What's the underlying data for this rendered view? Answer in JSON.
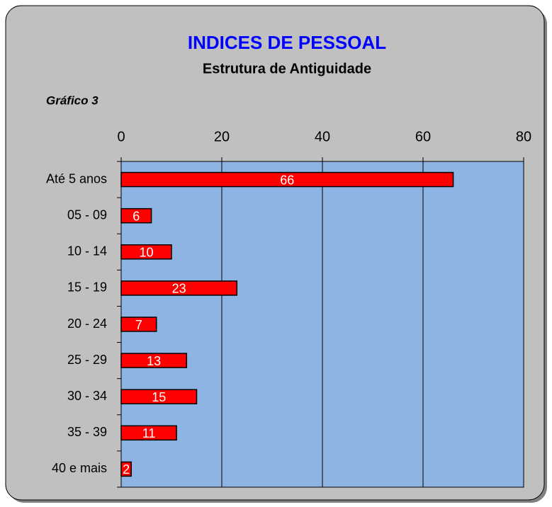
{
  "chart_data": {
    "type": "bar",
    "orientation": "horizontal",
    "title": "INDICES DE PESSOAL",
    "subtitle": "Estrutura de Antiguidade",
    "annotation": "Gráfico 3",
    "categories": [
      "Até 5 anos",
      "05 - 09",
      "10 - 14",
      "15 - 19",
      "20 - 24",
      "25 - 29",
      "30 - 34",
      "35 - 39",
      "40 e mais"
    ],
    "values": [
      66,
      6,
      10,
      23,
      7,
      13,
      15,
      11,
      2
    ],
    "color": "#ff0000",
    "plot_background": "#8eb4e3",
    "xlim": [
      0,
      80
    ],
    "xticks": [
      0,
      20,
      40,
      60,
      80
    ],
    "grid": true
  }
}
